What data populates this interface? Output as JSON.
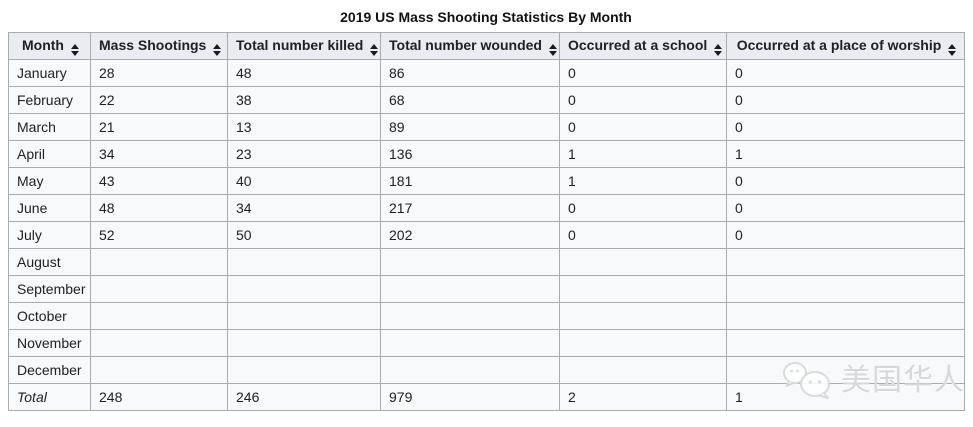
{
  "title": "2019 US Mass Shooting Statistics By Month",
  "table": {
    "columns": [
      {
        "label": "Month"
      },
      {
        "label": "Mass Shootings"
      },
      {
        "label": "Total number killed"
      },
      {
        "label": "Total number wounded"
      },
      {
        "label": "Occurred at a school"
      },
      {
        "label": "Occurred at a place of worship"
      }
    ],
    "rows": [
      [
        "January",
        "28",
        "48",
        "86",
        "0",
        "0"
      ],
      [
        "February",
        "22",
        "38",
        "68",
        "0",
        "0"
      ],
      [
        "March",
        "21",
        "13",
        "89",
        "0",
        "0"
      ],
      [
        "April",
        "34",
        "23",
        "136",
        "1",
        "1"
      ],
      [
        "May",
        "43",
        "40",
        "181",
        "1",
        "0"
      ],
      [
        "June",
        "48",
        "34",
        "217",
        "0",
        "0"
      ],
      [
        "July",
        "52",
        "50",
        "202",
        "0",
        "0"
      ],
      [
        "August",
        "",
        "",
        "",
        "",
        ""
      ],
      [
        "September",
        "",
        "",
        "",
        "",
        ""
      ],
      [
        "October",
        "",
        "",
        "",
        "",
        ""
      ],
      [
        "November",
        "",
        "",
        "",
        "",
        ""
      ],
      [
        "December",
        "",
        "",
        "",
        "",
        ""
      ]
    ],
    "total_row": [
      "Total",
      "248",
      "246",
      "979",
      "2",
      "1"
    ]
  },
  "watermark": {
    "text": "美国华人",
    "icon": "wechat-icon"
  },
  "colors": {
    "header_bg": "#eaecf0",
    "cell_bg": "#f8f9fa",
    "border": "#a6acb2",
    "text": "#202122",
    "watermark": "#d6d8da"
  },
  "chart_data": {
    "type": "table",
    "title": "2019 US Mass Shooting Statistics By Month",
    "columns": [
      "Month",
      "Mass Shootings",
      "Total number killed",
      "Total number wounded",
      "Occurred at a school",
      "Occurred at a place of worship"
    ],
    "rows": [
      [
        "January",
        28,
        48,
        86,
        0,
        0
      ],
      [
        "February",
        22,
        38,
        68,
        0,
        0
      ],
      [
        "March",
        21,
        13,
        89,
        0,
        0
      ],
      [
        "April",
        34,
        23,
        136,
        1,
        1
      ],
      [
        "May",
        43,
        40,
        181,
        1,
        0
      ],
      [
        "June",
        48,
        34,
        217,
        0,
        0
      ],
      [
        "July",
        52,
        50,
        202,
        0,
        0
      ],
      [
        "August",
        null,
        null,
        null,
        null,
        null
      ],
      [
        "September",
        null,
        null,
        null,
        null,
        null
      ],
      [
        "October",
        null,
        null,
        null,
        null,
        null
      ],
      [
        "November",
        null,
        null,
        null,
        null,
        null
      ],
      [
        "December",
        null,
        null,
        null,
        null,
        null
      ]
    ],
    "total": [
      "Total",
      248,
      246,
      979,
      2,
      1
    ],
    "layout_hints": {
      "sortable_headers": true,
      "grid": true,
      "empty_months": [
        "August",
        "September",
        "October",
        "November",
        "December"
      ]
    }
  }
}
